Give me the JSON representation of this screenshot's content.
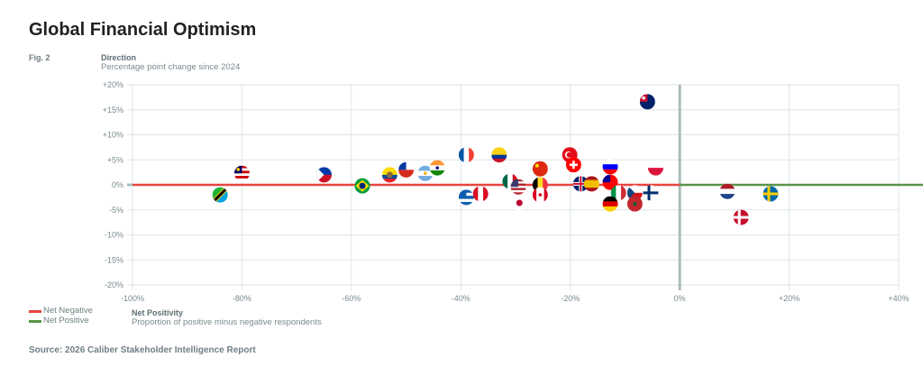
{
  "title": "Global Financial Optimism",
  "fig_label": "Fig. 2",
  "y_title": "Direction",
  "y_subtitle": "Percentage point change since 2024",
  "x_title": "Net Positivity",
  "x_subtitle": "Proportion of positive minus negative respondents",
  "legend": [
    {
      "label": "Net Negative",
      "color": "#e8443f"
    },
    {
      "label": "Net Positive",
      "color": "#5a9447"
    }
  ],
  "source": "Source: 2026 Caliber Stakeholder Intelligence Report",
  "chart_data": {
    "type": "scatter",
    "title": "Global Financial Optimism",
    "xlabel": "Net Positivity",
    "ylabel": "Direction",
    "xlim": [
      -100,
      40
    ],
    "ylim": [
      -20,
      20
    ],
    "x_ticks": [
      "-100%",
      "-80%",
      "-60%",
      "-40%",
      "-20%",
      "0%",
      "+20%",
      "+40%"
    ],
    "x_tick_values": [
      -100,
      -80,
      -60,
      -40,
      -20,
      0,
      20,
      40
    ],
    "y_ticks": [
      "+20%",
      "+15%",
      "+10%",
      "+5%",
      "0%",
      "-5%",
      "-10%",
      "-15%",
      "-20%"
    ],
    "y_tick_values": [
      20,
      15,
      10,
      5,
      0,
      -5,
      -10,
      -15,
      -20
    ],
    "grid": true,
    "points": [
      {
        "country": "Tanzania",
        "x": -84,
        "y": -2.0
      },
      {
        "country": "Malaysia",
        "x": -80,
        "y": 2.3
      },
      {
        "country": "Philippines",
        "x": -65,
        "y": 2.0
      },
      {
        "country": "Brazil",
        "x": -58,
        "y": -0.2
      },
      {
        "country": "Ecuador",
        "x": -53,
        "y": 2.0
      },
      {
        "country": "Chile",
        "x": -50,
        "y": 3.0
      },
      {
        "country": "Argentina",
        "x": -46.5,
        "y": 2.3
      },
      {
        "country": "India",
        "x": -44.3,
        "y": 3.4
      },
      {
        "country": "France",
        "x": -39,
        "y": 6
      },
      {
        "country": "Greece",
        "x": -39,
        "y": -2.5
      },
      {
        "country": "Colombia",
        "x": -33,
        "y": 6
      },
      {
        "country": "Peru",
        "x": -36.4,
        "y": -1.8
      },
      {
        "country": "Mexico",
        "x": -31,
        "y": 0.7
      },
      {
        "country": "United States",
        "x": -29.5,
        "y": -0.4
      },
      {
        "country": "Japan",
        "x": -29.3,
        "y": -3.6
      },
      {
        "country": "China",
        "x": -25.5,
        "y": 3.2
      },
      {
        "country": "Belgium",
        "x": -25.5,
        "y": 0
      },
      {
        "country": "Canada",
        "x": -25.5,
        "y": -2
      },
      {
        "country": "Turkey",
        "x": -20.1,
        "y": 6
      },
      {
        "country": "Switzerland",
        "x": -19.4,
        "y": 4
      },
      {
        "country": "United Kingdom",
        "x": -18.1,
        "y": 0.2
      },
      {
        "country": "Spain",
        "x": -16.1,
        "y": 0.2
      },
      {
        "country": "Slovenia",
        "x": -12.7,
        "y": 3.6
      },
      {
        "country": "Taiwan",
        "x": -12.7,
        "y": 0.5
      },
      {
        "country": "Italy",
        "x": -11.2,
        "y": -1.6
      },
      {
        "country": "Germany",
        "x": -12.7,
        "y": -3.8
      },
      {
        "country": "Czech Republic",
        "x": -8.2,
        "y": -1.6
      },
      {
        "country": "Morocco",
        "x": -8.2,
        "y": -3.8
      },
      {
        "country": "Finland",
        "x": -5.3,
        "y": -1.6
      },
      {
        "country": "Poland",
        "x": -4.4,
        "y": 3.4
      },
      {
        "country": "Australia",
        "x": -5.9,
        "y": 16.6
      },
      {
        "country": "Netherlands",
        "x": 8.7,
        "y": -1.3
      },
      {
        "country": "Sweden",
        "x": 16.6,
        "y": -1.8
      },
      {
        "country": "Denmark",
        "x": 11.2,
        "y": -6.5
      }
    ]
  }
}
